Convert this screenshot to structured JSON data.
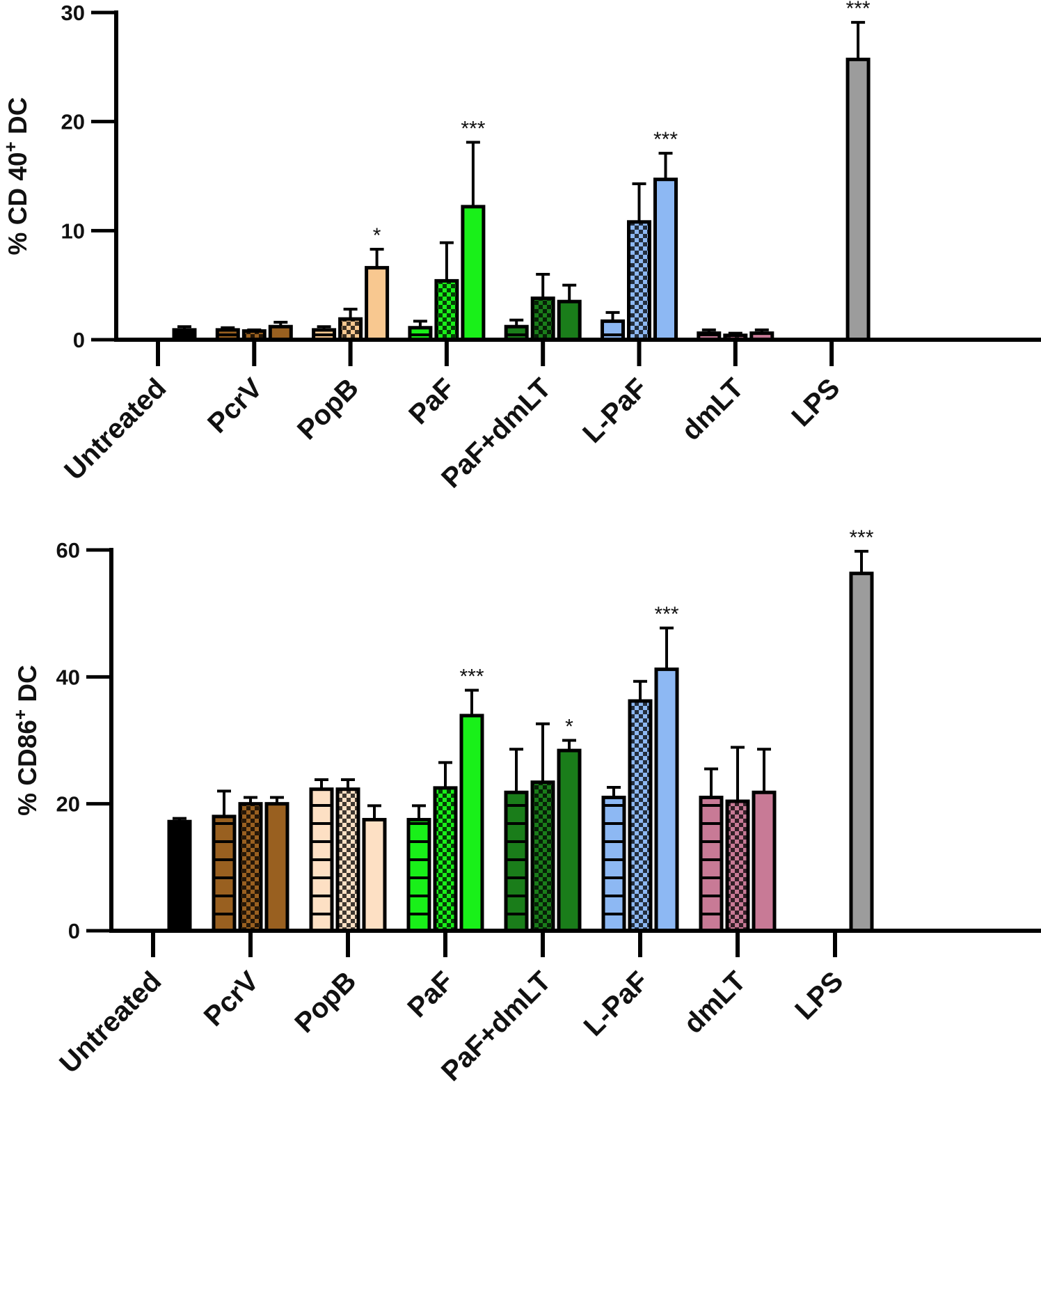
{
  "colors": {
    "black": "#000000",
    "brown": "#996020",
    "peach": "#f8c890",
    "peach_light": "#fde0c4",
    "bright_green": "#19f019",
    "dark_green": "#1a7d1a",
    "light_blue": "#8db8f3",
    "mauve": "#c87a96",
    "gray": "#9c9c9c"
  },
  "chart_data": [
    {
      "type": "bar",
      "title": "",
      "xlabel": "",
      "ylabel": "% CD 40",
      "ylabel_sup": "+",
      "ylabel_suffix": " DC",
      "ylim": [
        0,
        30
      ],
      "yticks": [
        "0",
        "10",
        "20",
        "30"
      ],
      "categories": [
        "Untreated",
        "PcrV",
        "PopB",
        "PaF",
        "PaF+dmLT",
        "L-PaF",
        "dmLT",
        "LPS"
      ],
      "bars": [
        {
          "cat": 0,
          "slot": 2,
          "value": 0.9,
          "err": 0.3,
          "color": "black",
          "pattern": "solid"
        },
        {
          "cat": 1,
          "slot": 0,
          "value": 0.9,
          "err": 0.2,
          "color": "brown",
          "pattern": "lines"
        },
        {
          "cat": 1,
          "slot": 1,
          "value": 0.8,
          "err": 0.1,
          "color": "brown",
          "pattern": "checker"
        },
        {
          "cat": 1,
          "slot": 2,
          "value": 1.2,
          "err": 0.4,
          "color": "brown",
          "pattern": "solid"
        },
        {
          "cat": 2,
          "slot": 0,
          "value": 0.9,
          "err": 0.3,
          "color": "peach",
          "pattern": "lines"
        },
        {
          "cat": 2,
          "slot": 1,
          "value": 1.9,
          "err": 0.9,
          "color": "peach",
          "pattern": "checker"
        },
        {
          "cat": 2,
          "slot": 2,
          "value": 6.6,
          "err": 1.7,
          "color": "peach",
          "pattern": "solid",
          "sig": "*"
        },
        {
          "cat": 3,
          "slot": 0,
          "value": 1.1,
          "err": 0.6,
          "color": "bright_green",
          "pattern": "lines"
        },
        {
          "cat": 3,
          "slot": 1,
          "value": 5.4,
          "err": 3.5,
          "color": "bright_green",
          "pattern": "checker"
        },
        {
          "cat": 3,
          "slot": 2,
          "value": 12.2,
          "err": 5.9,
          "color": "bright_green",
          "pattern": "solid",
          "sig": "***"
        },
        {
          "cat": 4,
          "slot": 0,
          "value": 1.2,
          "err": 0.6,
          "color": "dark_green",
          "pattern": "lines"
        },
        {
          "cat": 4,
          "slot": 1,
          "value": 3.8,
          "err": 2.2,
          "color": "dark_green",
          "pattern": "checker"
        },
        {
          "cat": 4,
          "slot": 2,
          "value": 3.5,
          "err": 1.5,
          "color": "dark_green",
          "pattern": "solid"
        },
        {
          "cat": 5,
          "slot": 0,
          "value": 1.7,
          "err": 0.8,
          "color": "light_blue",
          "pattern": "lines"
        },
        {
          "cat": 5,
          "slot": 1,
          "value": 10.8,
          "err": 3.5,
          "color": "light_blue",
          "pattern": "checker"
        },
        {
          "cat": 5,
          "slot": 2,
          "value": 14.7,
          "err": 2.4,
          "color": "light_blue",
          "pattern": "solid",
          "sig": "***"
        },
        {
          "cat": 6,
          "slot": 0,
          "value": 0.6,
          "err": 0.3,
          "color": "mauve",
          "pattern": "lines"
        },
        {
          "cat": 6,
          "slot": 1,
          "value": 0.4,
          "err": 0.2,
          "color": "mauve",
          "pattern": "checker"
        },
        {
          "cat": 6,
          "slot": 2,
          "value": 0.6,
          "err": 0.3,
          "color": "mauve",
          "pattern": "solid"
        },
        {
          "cat": 7,
          "slot": 2,
          "value": 25.7,
          "err": 3.4,
          "color": "gray",
          "pattern": "solid",
          "sig": "***"
        }
      ]
    },
    {
      "type": "bar",
      "title": "",
      "xlabel": "",
      "ylabel": "% CD86",
      "ylabel_sup": "+",
      "ylabel_suffix": " DC",
      "ylim": [
        0,
        60
      ],
      "yticks": [
        "0",
        "20",
        "40",
        "60"
      ],
      "categories": [
        "Untreated",
        "PcrV",
        "PopB",
        "PaF",
        "PaF+dmLT",
        "L-PaF",
        "dmLT",
        "LPS"
      ],
      "bars": [
        {
          "cat": 0,
          "slot": 2,
          "value": 17.2,
          "err": 0.5,
          "color": "black",
          "pattern": "solid"
        },
        {
          "cat": 1,
          "slot": 0,
          "value": 18.0,
          "err": 4.0,
          "color": "brown",
          "pattern": "lines"
        },
        {
          "cat": 1,
          "slot": 1,
          "value": 20.0,
          "err": 1.0,
          "color": "brown",
          "pattern": "checker"
        },
        {
          "cat": 1,
          "slot": 2,
          "value": 20.0,
          "err": 1.0,
          "color": "brown",
          "pattern": "solid"
        },
        {
          "cat": 2,
          "slot": 0,
          "value": 22.3,
          "err": 1.5,
          "color": "peach_light",
          "pattern": "lines"
        },
        {
          "cat": 2,
          "slot": 1,
          "value": 22.3,
          "err": 1.5,
          "color": "peach_light",
          "pattern": "checker"
        },
        {
          "cat": 2,
          "slot": 2,
          "value": 17.5,
          "err": 2.2,
          "color": "peach_light",
          "pattern": "solid"
        },
        {
          "cat": 3,
          "slot": 0,
          "value": 17.5,
          "err": 2.2,
          "color": "bright_green",
          "pattern": "lines"
        },
        {
          "cat": 3,
          "slot": 1,
          "value": 22.5,
          "err": 4.0,
          "color": "bright_green",
          "pattern": "checker"
        },
        {
          "cat": 3,
          "slot": 2,
          "value": 33.9,
          "err": 4.0,
          "color": "bright_green",
          "pattern": "solid",
          "sig": "***"
        },
        {
          "cat": 4,
          "slot": 0,
          "value": 21.8,
          "err": 6.8,
          "color": "dark_green",
          "pattern": "lines"
        },
        {
          "cat": 4,
          "slot": 1,
          "value": 23.4,
          "err": 9.2,
          "color": "dark_green",
          "pattern": "checker"
        },
        {
          "cat": 4,
          "slot": 2,
          "value": 28.4,
          "err": 1.6,
          "color": "dark_green",
          "pattern": "solid",
          "sig": "*"
        },
        {
          "cat": 5,
          "slot": 0,
          "value": 21.0,
          "err": 1.6,
          "color": "light_blue",
          "pattern": "lines"
        },
        {
          "cat": 5,
          "slot": 1,
          "value": 36.2,
          "err": 3.1,
          "color": "light_blue",
          "pattern": "checker"
        },
        {
          "cat": 5,
          "slot": 2,
          "value": 41.2,
          "err": 6.5,
          "color": "light_blue",
          "pattern": "solid",
          "sig": "***"
        },
        {
          "cat": 6,
          "slot": 0,
          "value": 21.0,
          "err": 4.5,
          "color": "mauve",
          "pattern": "lines"
        },
        {
          "cat": 6,
          "slot": 1,
          "value": 20.4,
          "err": 8.5,
          "color": "mauve",
          "pattern": "checker"
        },
        {
          "cat": 6,
          "slot": 2,
          "value": 21.8,
          "err": 6.8,
          "color": "mauve",
          "pattern": "solid"
        },
        {
          "cat": 7,
          "slot": 2,
          "value": 56.3,
          "err": 3.5,
          "color": "gray",
          "pattern": "solid",
          "sig": "***"
        }
      ]
    }
  ]
}
